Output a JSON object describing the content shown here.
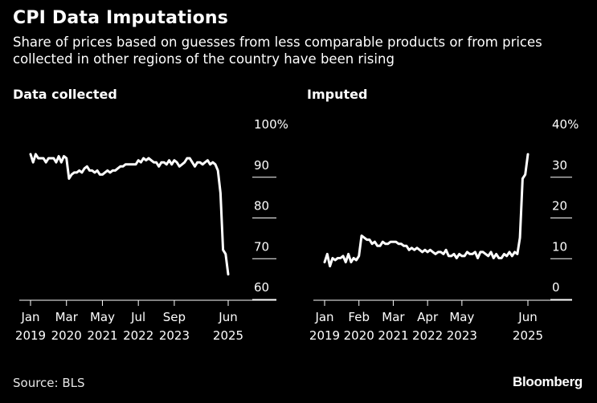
{
  "header": {
    "title": "CPI Data Imputations",
    "subtitle": "Share of prices based on guesses from less comparable products or from prices collected in other regions of the country have been rising"
  },
  "footer": {
    "source": "Source: BLS",
    "brand": "Bloomberg"
  },
  "colors": {
    "background": "#000000",
    "line": "#ffffff",
    "grid": "#ffffff",
    "text": "#ffffff"
  },
  "chart_data": [
    {
      "type": "line",
      "title": "Data collected",
      "xlabel": "",
      "ylabel": "",
      "grid": true,
      "ylim": [
        60,
        100
      ],
      "yticks": [
        {
          "value": 100,
          "label": "100%"
        },
        {
          "value": 90,
          "label": "90"
        },
        {
          "value": 80,
          "label": "80"
        },
        {
          "value": 70,
          "label": "70"
        },
        {
          "value": 60,
          "label": "60"
        }
      ],
      "xlim": [
        "2019-01",
        "2025-06"
      ],
      "xticks": [
        {
          "date": "2019-01",
          "line1": "Jan",
          "line2": "2019"
        },
        {
          "date": "2020-03",
          "line1": "Mar",
          "line2": "2020"
        },
        {
          "date": "2021-05",
          "line1": "May",
          "line2": "2021"
        },
        {
          "date": "2022-07",
          "line1": "Jul",
          "line2": "2022"
        },
        {
          "date": "2023-09",
          "line1": "Sep",
          "line2": "2023"
        },
        {
          "date": "2025-06",
          "line1": "Jun",
          "line2": "2025"
        }
      ],
      "series": [
        {
          "x": [
            "2019-01",
            "2019-02",
            "2019-03",
            "2019-04",
            "2019-05",
            "2019-06",
            "2019-07",
            "2019-08",
            "2019-09",
            "2019-10",
            "2019-11",
            "2019-12",
            "2020-01",
            "2020-02",
            "2020-03",
            "2020-04",
            "2020-05",
            "2020-06",
            "2020-07",
            "2020-08",
            "2020-09",
            "2020-10",
            "2020-11",
            "2020-12",
            "2021-01",
            "2021-02",
            "2021-03",
            "2021-04",
            "2021-05",
            "2021-06",
            "2021-07",
            "2021-08",
            "2021-09",
            "2021-10",
            "2021-11",
            "2021-12",
            "2022-01",
            "2022-02",
            "2022-03",
            "2022-04",
            "2022-05",
            "2022-06",
            "2022-07",
            "2022-08",
            "2022-09",
            "2022-10",
            "2022-11",
            "2022-12",
            "2023-01",
            "2023-02",
            "2023-03",
            "2023-04",
            "2023-05",
            "2023-06",
            "2023-07",
            "2023-08",
            "2023-09",
            "2023-10",
            "2023-11",
            "2023-12",
            "2024-01",
            "2024-02",
            "2024-03",
            "2024-04",
            "2024-05",
            "2024-06",
            "2024-07",
            "2024-08",
            "2024-09",
            "2024-10",
            "2024-11",
            "2024-12",
            "2025-01",
            "2025-02",
            "2025-03",
            "2025-04",
            "2025-05",
            "2025-06"
          ],
          "values": [
            92.5,
            90.5,
            92.5,
            91.5,
            91.5,
            91.5,
            90.5,
            91.5,
            91.5,
            91.5,
            90.5,
            92,
            90.5,
            92,
            91.5,
            86.5,
            87.5,
            88,
            88,
            88.5,
            88,
            89,
            89.5,
            88.5,
            88.5,
            88,
            88.5,
            87.5,
            87.5,
            88,
            88.5,
            88,
            88.5,
            88.5,
            89,
            89.5,
            89.5,
            90,
            90,
            90,
            90,
            90,
            91,
            90.5,
            91.5,
            91,
            91.5,
            91,
            90.5,
            90.5,
            89.5,
            90.5,
            90.5,
            90,
            91,
            90,
            91,
            90.5,
            89.5,
            90,
            90.5,
            91.5,
            91.5,
            90.5,
            89.5,
            90.5,
            90.5,
            90,
            90.5,
            91,
            90,
            90.5,
            90,
            88.5,
            83,
            69,
            68,
            63
          ]
        }
      ]
    },
    {
      "type": "line",
      "title": "Imputed",
      "xlabel": "",
      "ylabel": "",
      "grid": true,
      "ylim": [
        0,
        40
      ],
      "yticks": [
        {
          "value": 40,
          "label": "40%"
        },
        {
          "value": 30,
          "label": "30"
        },
        {
          "value": 20,
          "label": "20"
        },
        {
          "value": 10,
          "label": "10"
        },
        {
          "value": 0,
          "label": "0"
        }
      ],
      "xlim": [
        "2019-01",
        "2025-06"
      ],
      "xticks": [
        {
          "date": "2019-01",
          "line1": "Jan",
          "line2": "2019"
        },
        {
          "date": "2020-02",
          "line1": "Feb",
          "line2": "2020"
        },
        {
          "date": "2021-03",
          "line1": "Mar",
          "line2": "2021"
        },
        {
          "date": "2022-04",
          "line1": "Apr",
          "line2": "2022"
        },
        {
          "date": "2023-05",
          "line1": "May",
          "line2": "2023"
        },
        {
          "date": "2025-06",
          "line1": "Jun",
          "line2": "2025"
        }
      ],
      "series": [
        {
          "x": [
            "2019-01",
            "2019-02",
            "2019-03",
            "2019-04",
            "2019-05",
            "2019-06",
            "2019-07",
            "2019-08",
            "2019-09",
            "2019-10",
            "2019-11",
            "2019-12",
            "2020-01",
            "2020-02",
            "2020-03",
            "2020-04",
            "2020-05",
            "2020-06",
            "2020-07",
            "2020-08",
            "2020-09",
            "2020-10",
            "2020-11",
            "2020-12",
            "2021-01",
            "2021-02",
            "2021-03",
            "2021-04",
            "2021-05",
            "2021-06",
            "2021-07",
            "2021-08",
            "2021-09",
            "2021-10",
            "2021-11",
            "2021-12",
            "2022-01",
            "2022-02",
            "2022-03",
            "2022-04",
            "2022-05",
            "2022-06",
            "2022-07",
            "2022-08",
            "2022-09",
            "2022-10",
            "2022-11",
            "2022-12",
            "2023-01",
            "2023-02",
            "2023-03",
            "2023-04",
            "2023-05",
            "2023-06",
            "2023-07",
            "2023-08",
            "2023-09",
            "2023-10",
            "2023-11",
            "2023-12",
            "2024-01",
            "2024-02",
            "2024-03",
            "2024-04",
            "2024-05",
            "2024-06",
            "2024-07",
            "2024-08",
            "2024-09",
            "2024-10",
            "2024-11",
            "2024-12",
            "2025-01",
            "2025-02",
            "2025-03",
            "2025-04",
            "2025-05",
            "2025-06"
          ],
          "values": [
            6,
            8,
            5,
            7,
            6.5,
            7,
            7,
            7.5,
            6,
            8,
            6,
            7,
            6.5,
            7.5,
            12.5,
            12,
            11.5,
            11.5,
            10.5,
            11,
            10,
            10,
            11,
            10.5,
            10.5,
            11,
            11,
            11,
            10.5,
            10.5,
            10,
            10,
            9,
            9.5,
            9,
            9.5,
            9,
            8.5,
            9,
            8.5,
            9,
            8.5,
            8,
            8.5,
            8.5,
            8,
            9,
            7.5,
            7.5,
            8,
            7,
            8,
            7.5,
            7.5,
            8.5,
            8,
            8,
            8.5,
            7,
            8.5,
            8.5,
            8,
            7.5,
            8.5,
            7,
            8,
            7,
            7,
            8,
            7.5,
            8.5,
            7.5,
            8.5,
            8,
            12,
            26.5,
            27.5,
            32.5
          ]
        }
      ]
    }
  ]
}
